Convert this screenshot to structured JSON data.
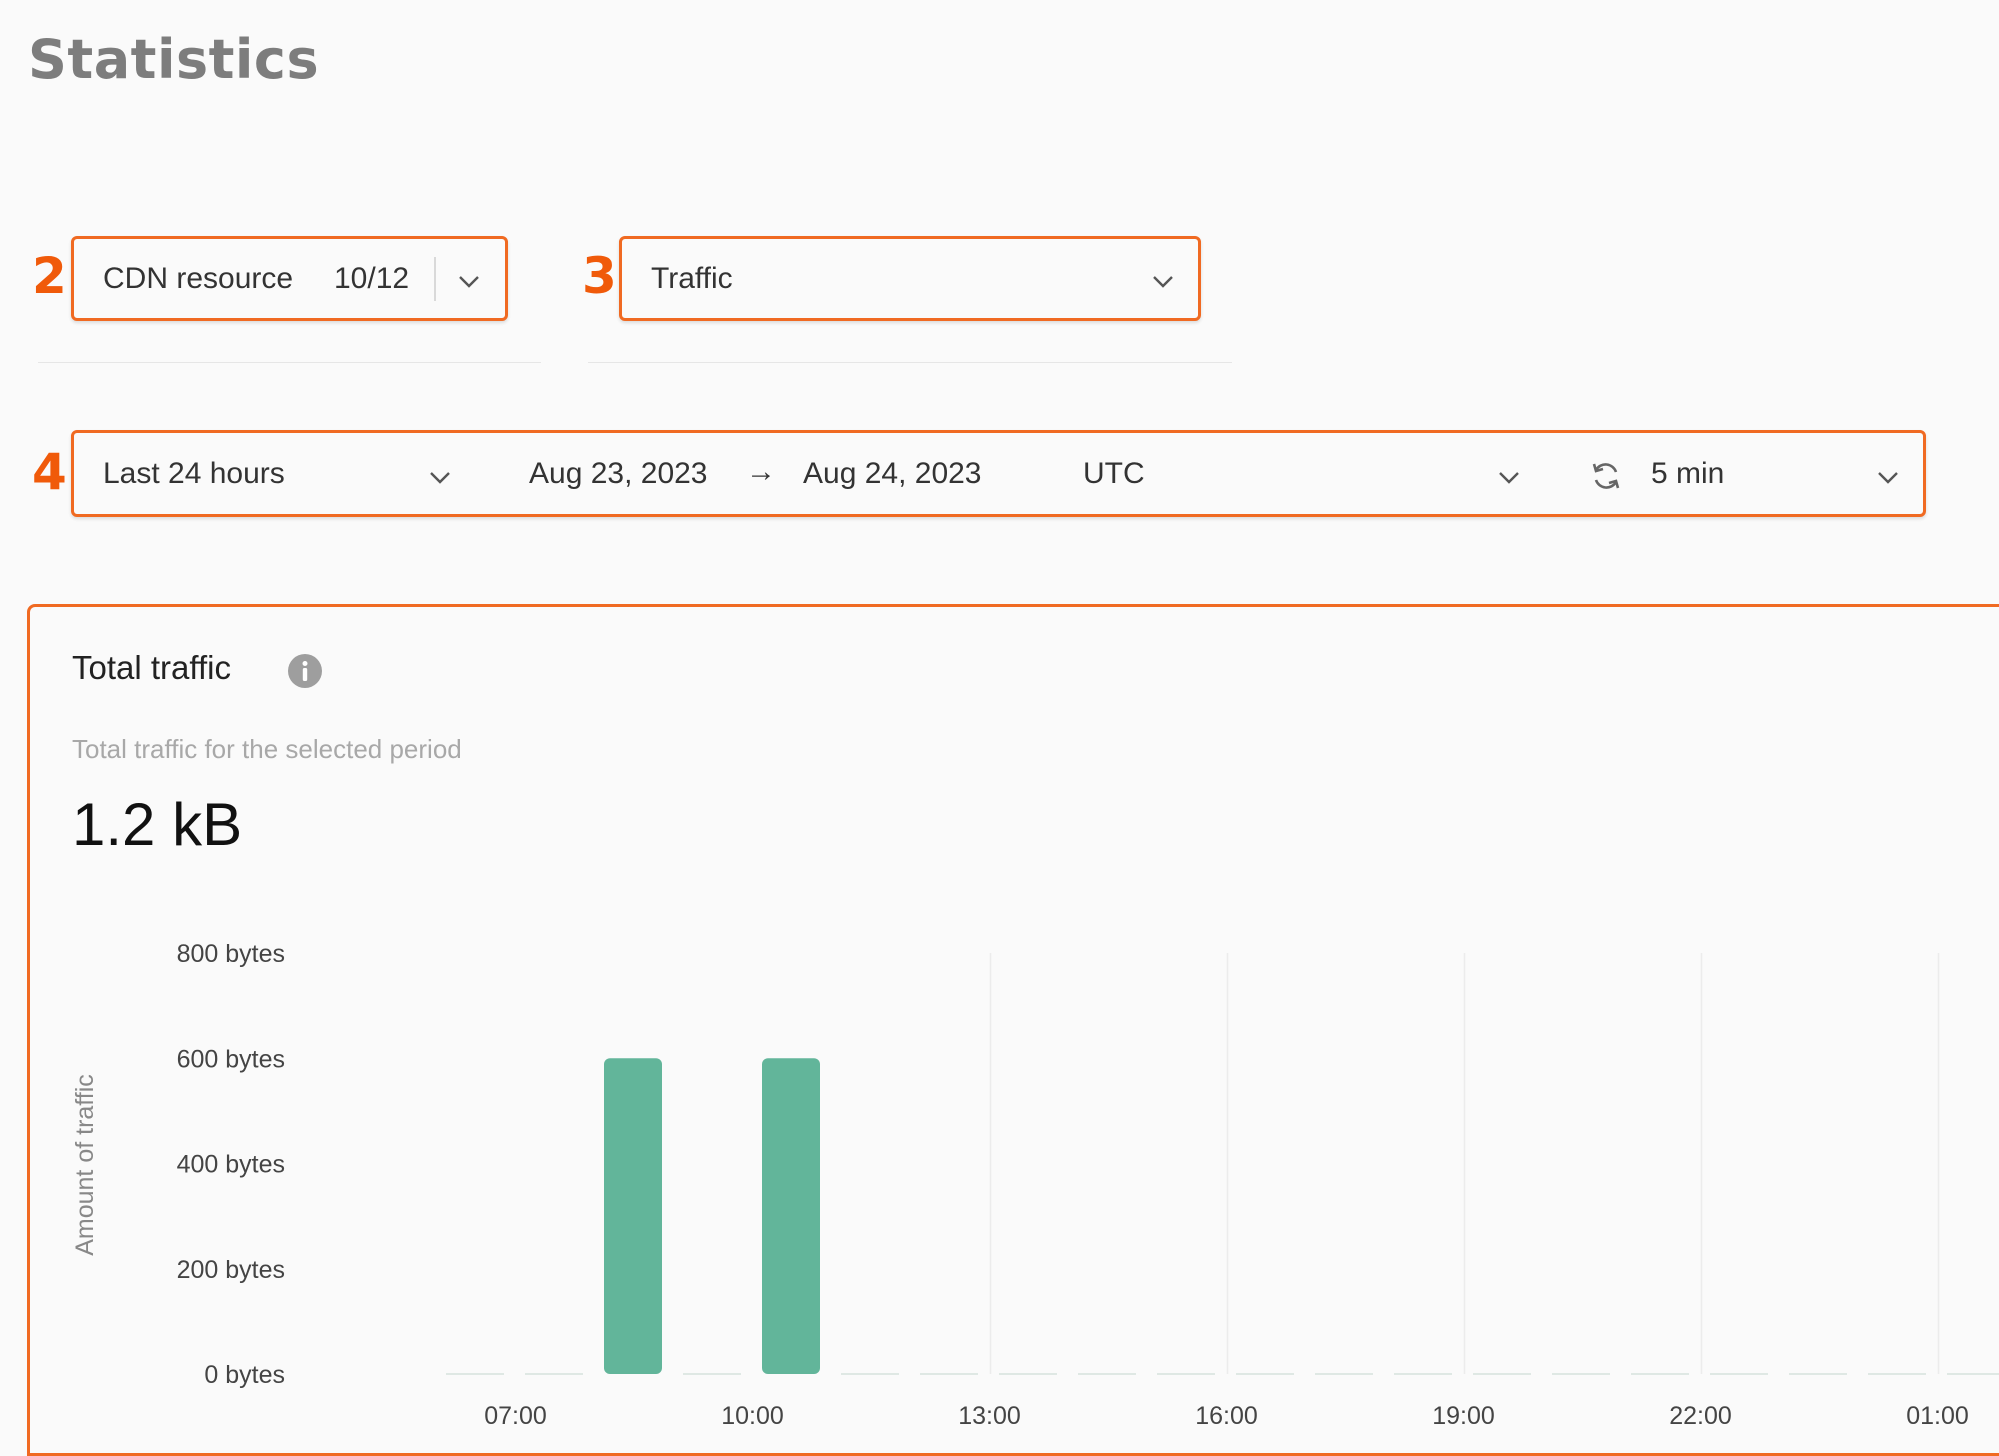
{
  "page": {
    "title": "Statistics"
  },
  "callouts": {
    "resource": "2",
    "metric": "3",
    "period": "4"
  },
  "resource_select": {
    "label": "CDN resource",
    "count": "10/12",
    "icon": "chevron-down-icon"
  },
  "metric_select": {
    "value": "Traffic",
    "icon": "chevron-down-icon"
  },
  "period_bar": {
    "range": "Last 24 hours",
    "start_date": "Aug 23, 2023",
    "arrow": "→",
    "end_date": "Aug 24, 2023",
    "timezone": "UTC",
    "refresh_icon": "refresh-icon",
    "interval": "5 min"
  },
  "panel": {
    "title": "Total traffic",
    "info_icon": "info-icon",
    "subtitle": "Total traffic for the selected period",
    "total": "1.2 kB"
  },
  "colors": {
    "accent": "#f06a22",
    "bar": "#62b59a",
    "title": "#7d7d7d"
  },
  "chart_data": {
    "type": "bar",
    "ylabel": "Amount of traffic",
    "ylim": [
      0,
      800
    ],
    "y_unit": "bytes",
    "yticks": [
      "800 bytes",
      "600 bytes",
      "400 bytes",
      "200 bytes",
      "0 bytes"
    ],
    "ytick_values": [
      800,
      600,
      400,
      200,
      0
    ],
    "xticks": [
      "07:00",
      "10:00",
      "13:00",
      "16:00",
      "19:00",
      "22:00",
      "01:00"
    ],
    "x_start": "06:00",
    "bin_hours": 1,
    "series": [
      {
        "values": [
          0,
          0,
          600,
          0,
          600,
          0,
          0,
          0,
          0,
          0,
          0,
          0,
          0,
          0,
          0,
          0,
          0,
          0,
          0,
          0
        ]
      }
    ],
    "grid": "vertical"
  }
}
